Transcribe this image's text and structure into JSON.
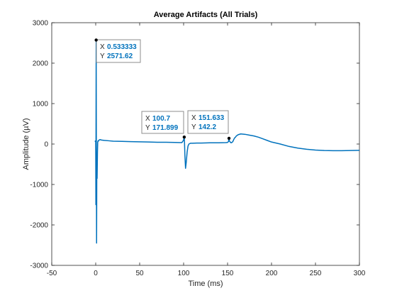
{
  "chart_data": {
    "type": "line",
    "title": "Average Artifacts (All Trials)",
    "xlabel": "Time (ms)",
    "ylabel": "Amplitude (µV)",
    "xlim": [
      -50,
      300
    ],
    "ylim": [
      -3000,
      3000
    ],
    "xticks": [
      -50,
      0,
      50,
      100,
      150,
      200,
      250,
      300
    ],
    "yticks": [
      -3000,
      -2000,
      -1000,
      0,
      1000,
      2000,
      3000
    ],
    "grid": false,
    "line_color": "#0072bd",
    "series": [
      {
        "x": [
          -1,
          0,
          0.2,
          0.533333,
          0.8,
          1.0,
          1.3,
          1.6,
          2.0,
          2.3,
          2.7,
          3.0,
          3.5,
          4.0,
          5,
          6,
          8,
          10,
          15,
          20,
          30,
          40,
          50,
          60,
          70,
          80,
          90,
          98,
          99.5,
          100.2,
          100.7,
          101,
          101.5,
          102.2,
          103,
          104,
          105,
          106,
          108,
          110,
          115,
          120,
          130,
          140,
          148,
          150,
          151,
          151.633,
          152,
          153,
          154,
          155,
          156,
          157,
          158,
          159,
          160,
          162,
          165,
          170,
          175,
          180,
          185,
          190,
          195,
          200,
          210,
          220,
          230,
          240,
          250,
          260,
          270,
          280,
          290,
          300
        ],
        "y": [
          60,
          80,
          -1500,
          2571.62,
          -800,
          -2450,
          -300,
          -850,
          -200,
          50,
          80,
          70,
          90,
          100,
          110,
          100,
          95,
          90,
          80,
          70,
          65,
          60,
          55,
          50,
          45,
          45,
          40,
          35,
          80,
          120,
          171.899,
          50,
          -300,
          -600,
          -450,
          -200,
          -50,
          0,
          20,
          20,
          25,
          25,
          30,
          30,
          35,
          40,
          60,
          142.2,
          80,
          50,
          30,
          40,
          60,
          110,
          150,
          170,
          200,
          230,
          250,
          240,
          220,
          200,
          170,
          130,
          90,
          50,
          0,
          -60,
          -100,
          -130,
          -150,
          -160,
          -165,
          -165,
          -160,
          -155
        ]
      }
    ],
    "datatips": [
      {
        "x_label": "X",
        "x_value": "0.533333",
        "y_label": "Y",
        "y_value": "2571.62",
        "x": 0.533333,
        "y": 2571.62
      },
      {
        "x_label": "X",
        "x_value": "100.7",
        "y_label": "Y",
        "y_value": "171.899",
        "x": 100.7,
        "y": 171.899
      },
      {
        "x_label": "X",
        "x_value": "151.633",
        "y_label": "Y",
        "y_value": "142.2",
        "x": 151.633,
        "y": 142.2
      }
    ]
  }
}
